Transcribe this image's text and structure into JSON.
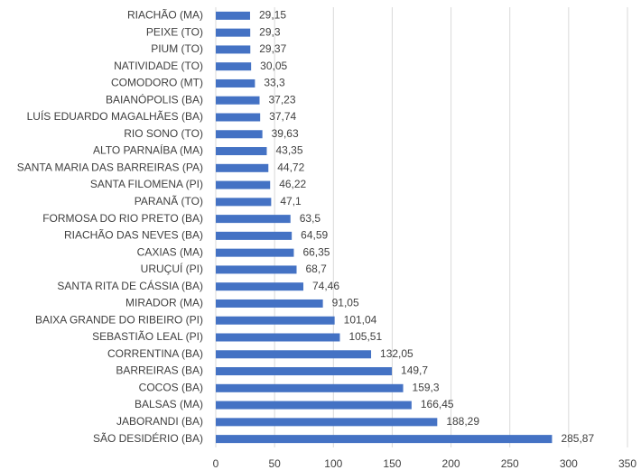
{
  "chart_data": {
    "type": "hbar",
    "categories": [
      "RIACHÃO (MA)",
      "PEIXE (TO)",
      "PIUM (TO)",
      "NATIVIDADE (TO)",
      "COMODORO (MT)",
      "BAIANÓPOLIS (BA)",
      "LUÍS EDUARDO MAGALHÃES (BA)",
      "RIO SONO (TO)",
      "ALTO PARNAÍBA (MA)",
      "SANTA MARIA DAS BARREIRAS (PA)",
      "SANTA FILOMENA (PI)",
      "PARANÃ (TO)",
      "FORMOSA DO RIO PRETO (BA)",
      "RIACHÃO DAS NEVES (BA)",
      "CAXIAS (MA)",
      "URUÇUÍ (PI)",
      "SANTA RITA DE CÁSSIA (BA)",
      "MIRADOR (MA)",
      "BAIXA GRANDE DO RIBEIRO (PI)",
      "SEBASTIÃO LEAL (PI)",
      "CORRENTINA (BA)",
      "BARREIRAS (BA)",
      "COCOS (BA)",
      "BALSAS (MA)",
      "JABORANDI (BA)",
      "SÃO DESIDÉRIO (BA)"
    ],
    "values": [
      29.15,
      29.3,
      29.37,
      30.05,
      33.3,
      37.23,
      37.74,
      39.63,
      43.35,
      44.72,
      46.22,
      47.1,
      63.5,
      64.59,
      66.35,
      68.7,
      74.46,
      91.05,
      101.04,
      105.51,
      132.05,
      149.7,
      159.3,
      166.45,
      188.29,
      285.87
    ],
    "value_labels": [
      "29,15",
      "29,3",
      "29,37",
      "30,05",
      "33,3",
      "37,23",
      "37,74",
      "39,63",
      "43,35",
      "44,72",
      "46,22",
      "47,1",
      "63,5",
      "64,59",
      "66,35",
      "68,7",
      "74,46",
      "91,05",
      "101,04",
      "105,51",
      "132,05",
      "149,7",
      "159,3",
      "166,45",
      "188,29",
      "285,87"
    ],
    "color": "#4472c4",
    "xlim": [
      0,
      350
    ],
    "xticks": [
      0,
      50,
      100,
      150,
      200,
      250,
      300,
      350
    ],
    "grid": true
  }
}
